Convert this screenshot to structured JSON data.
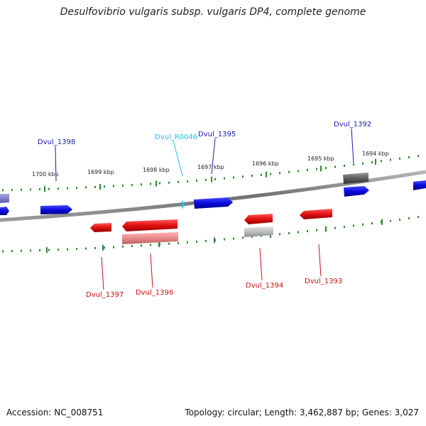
{
  "title": "Desulfovibrio vulgaris subsp. vulgaris DP4, complete genome",
  "footer": {
    "accession": "Accession: NC_008751",
    "stats": "Topology: circular; Length: 3,462,887 bp; Genes: 3,027"
  },
  "colors": {
    "forward": "#0a0adc",
    "reverse": "#e01010",
    "rna": "#22bbee",
    "pseudo_forward": "#666666",
    "pseudo_reverse": "#e88888",
    "ticks": "#2a8a2a",
    "backbone": "#888888"
  },
  "scale_labels": [
    "1700 kbp",
    "1699 kbp",
    "1698 kbp",
    "1697 kbp",
    "1696 kbp",
    "1695 kbp",
    "1694 kbp"
  ],
  "gene_labels": [
    {
      "id": "Dvul_1398",
      "strand": "forward"
    },
    {
      "id": "Dvul_R0046",
      "strand": "rna"
    },
    {
      "id": "Dvul_1395",
      "strand": "forward"
    },
    {
      "id": "Dvul_1392",
      "strand": "forward"
    },
    {
      "id": "Dvul_1397",
      "strand": "reverse"
    },
    {
      "id": "Dvul_1396",
      "strand": "reverse"
    },
    {
      "id": "Dvul_1394",
      "strand": "reverse"
    },
    {
      "id": "Dvul_1393",
      "strand": "reverse"
    }
  ]
}
